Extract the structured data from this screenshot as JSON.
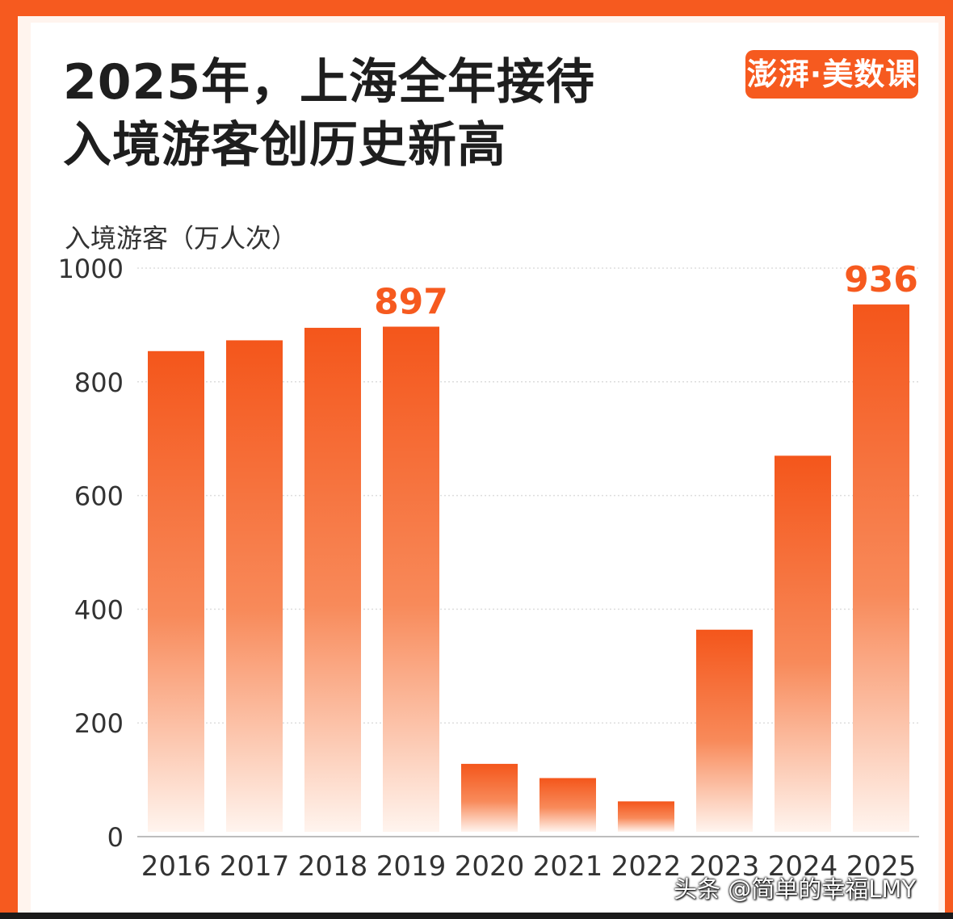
{
  "header": {
    "title_line_1": "2025年，上海全年接待",
    "title_line_2": "入境游客创历史新高",
    "logo_text": "澎湃·美数课"
  },
  "watermark": "头条 @简单的幸福LMY",
  "colors": {
    "accent": "#f65a1f",
    "bar_top": "#f4561b",
    "bar_bottom": "#fff4ee",
    "axis_text": "#333333",
    "highlight_label": "#f65a1f"
  },
  "chart_data": {
    "type": "bar",
    "title": "2025年，上海全年接待入境游客创历史新高",
    "ylabel": "入境游客（万人次）",
    "xlabel": "",
    "ylim": [
      0,
      1000
    ],
    "yticks": [
      0,
      200,
      400,
      600,
      800,
      1000
    ],
    "grid": true,
    "categories": [
      "2016",
      "2017",
      "2018",
      "2019",
      "2020",
      "2021",
      "2022",
      "2023",
      "2024",
      "2025"
    ],
    "values": [
      854,
      873,
      895,
      897,
      128,
      103,
      62,
      364,
      670,
      936
    ],
    "data_labels": [
      {
        "category": "2019",
        "label": "897"
      },
      {
        "category": "2025",
        "label": "936"
      }
    ]
  }
}
